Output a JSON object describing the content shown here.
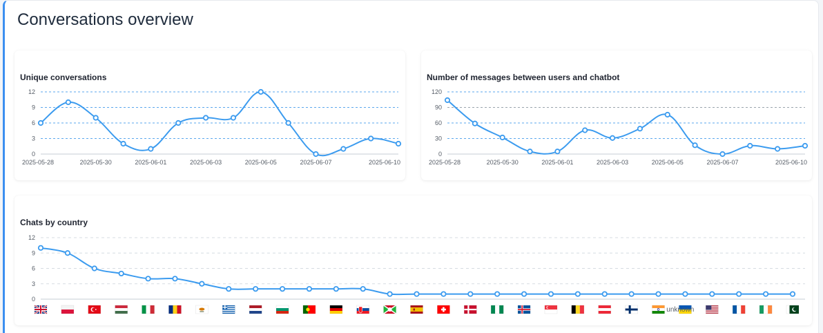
{
  "page": {
    "title": "Conversations overview"
  },
  "chart_data": [
    {
      "id": "unique",
      "type": "line",
      "title": "Unique conversations",
      "x": [
        "2025-05-28",
        "2025-05-29",
        "2025-05-30",
        "2025-05-31",
        "2025-06-01",
        "2025-06-02",
        "2025-06-03",
        "2025-06-04",
        "2025-06-05",
        "2025-06-06",
        "2025-06-07",
        "2025-06-08",
        "2025-06-09",
        "2025-06-10"
      ],
      "x_tick_labels": [
        "2025-05-28",
        "2025-05-30",
        "2025-06-01",
        "2025-06-03",
        "2025-06-05",
        "2025-06-07",
        "2025-06-10"
      ],
      "y_ticks": [
        0,
        3,
        6,
        9,
        12
      ],
      "ylim": [
        0,
        12
      ],
      "series": [
        {
          "values": [
            6,
            10,
            7,
            2,
            1,
            6,
            7,
            7,
            12,
            6,
            0,
            1,
            3,
            2
          ]
        }
      ],
      "color": "#3b9bef"
    },
    {
      "id": "messages",
      "type": "line",
      "title": "Number of messages between users and chatbot",
      "x": [
        "2025-05-28",
        "2025-05-29",
        "2025-05-30",
        "2025-05-31",
        "2025-06-01",
        "2025-06-02",
        "2025-06-03",
        "2025-06-04",
        "2025-06-05",
        "2025-06-06",
        "2025-06-07",
        "2025-06-08",
        "2025-06-09",
        "2025-06-10"
      ],
      "x_tick_labels": [
        "2025-05-28",
        "2025-05-30",
        "2025-06-01",
        "2025-06-03",
        "2025-06-05",
        "2025-06-07",
        "2025-06-10"
      ],
      "y_ticks": [
        0,
        30,
        60,
        90,
        120
      ],
      "ylim": [
        0,
        120
      ],
      "series": [
        {
          "values": [
            104,
            59,
            32,
            5,
            5,
            46,
            31,
            49,
            76,
            17,
            0,
            16,
            10,
            16
          ]
        }
      ],
      "color": "#3b9bef"
    },
    {
      "id": "country",
      "type": "line",
      "title": "Chats by country",
      "x": [
        "gb",
        "pl",
        "tr",
        "hu",
        "it",
        "ro",
        "cy",
        "gr",
        "nl",
        "bg",
        "pt",
        "de",
        "sk",
        "bi",
        "es",
        "ch",
        "dk",
        "ng",
        "is",
        "sg",
        "be",
        "at",
        "fi",
        "in",
        "ua",
        "us",
        "fr",
        "ie",
        "pk"
      ],
      "x_labels": [
        "",
        "",
        "",
        "",
        "",
        "",
        "",
        "",
        "",
        "",
        "",
        "",
        "",
        "",
        "",
        "",
        "",
        "",
        "",
        "",
        "",
        "",
        "",
        "",
        "",
        "unknown",
        "",
        "",
        ""
      ],
      "y_ticks": [
        0,
        3,
        6,
        9,
        12
      ],
      "ylim": [
        0,
        12
      ],
      "series": [
        {
          "values": [
            10,
            9,
            6,
            5,
            4,
            4,
            3,
            2,
            2,
            2,
            2,
            2,
            2,
            1,
            1,
            1,
            1,
            1,
            1,
            1,
            1,
            1,
            1,
            1,
            1,
            1,
            1,
            1,
            1
          ]
        }
      ],
      "color": "#3b9bef"
    }
  ]
}
